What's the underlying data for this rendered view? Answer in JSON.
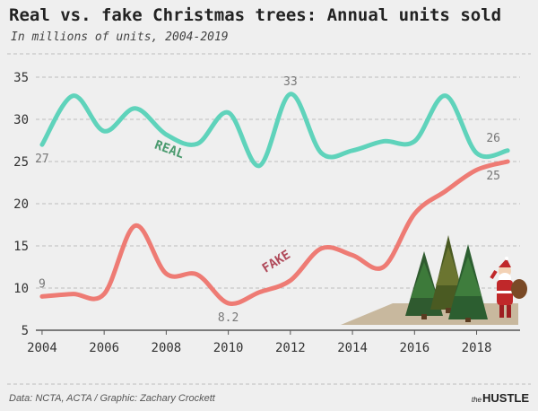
{
  "header": {
    "title": "Real vs. fake Christmas trees: Annual units sold",
    "subtitle": "In millions of units, 2004-2019"
  },
  "footer": {
    "source": "Data: NCTA, ACTA / Graphic: Zachary Crockett",
    "brand_prefix": "the",
    "brand_name": "HUSTLE"
  },
  "colors": {
    "real": "#5fd3bb",
    "real_label": "#4a9a6e",
    "fake": "#ee7b74",
    "fake_label": "#b04a5a",
    "grid": "#bdbdbd",
    "axis": "#555555"
  },
  "chart_data": {
    "type": "line",
    "x": [
      2004,
      2005,
      2006,
      2007,
      2008,
      2009,
      2010,
      2011,
      2012,
      2013,
      2014,
      2015,
      2016,
      2017,
      2018,
      2019
    ],
    "series": [
      {
        "name": "REAL",
        "values": [
          27,
          32.8,
          28.6,
          31.3,
          28.2,
          27.1,
          30.8,
          24.5,
          33,
          26,
          26.3,
          27.4,
          27.4,
          32.8,
          26,
          26.3
        ]
      },
      {
        "name": "FAKE",
        "values": [
          9,
          9.3,
          9.3,
          17.4,
          11.7,
          11.6,
          8.2,
          9.5,
          10.9,
          14.7,
          13.9,
          12.5,
          18.8,
          21.5,
          24,
          25
        ]
      }
    ],
    "ylim": [
      5,
      35
    ],
    "xlim": [
      2003.8,
      2019.4
    ],
    "yticks": [
      5,
      10,
      15,
      20,
      25,
      30,
      35
    ],
    "xticks": [
      2004,
      2006,
      2008,
      2010,
      2012,
      2014,
      2016,
      2018
    ],
    "grid": true,
    "annotations": [
      {
        "series": 0,
        "index": 0,
        "text": "27",
        "pos": "below"
      },
      {
        "series": 0,
        "index": 8,
        "text": "33",
        "pos": "above"
      },
      {
        "series": 0,
        "index": 15,
        "text": "26",
        "pos": "above"
      },
      {
        "series": 1,
        "index": 0,
        "text": "9",
        "pos": "above"
      },
      {
        "series": 1,
        "index": 6,
        "text": "8.2",
        "pos": "below"
      },
      {
        "series": 1,
        "index": 15,
        "text": "25",
        "pos": "below"
      }
    ]
  }
}
